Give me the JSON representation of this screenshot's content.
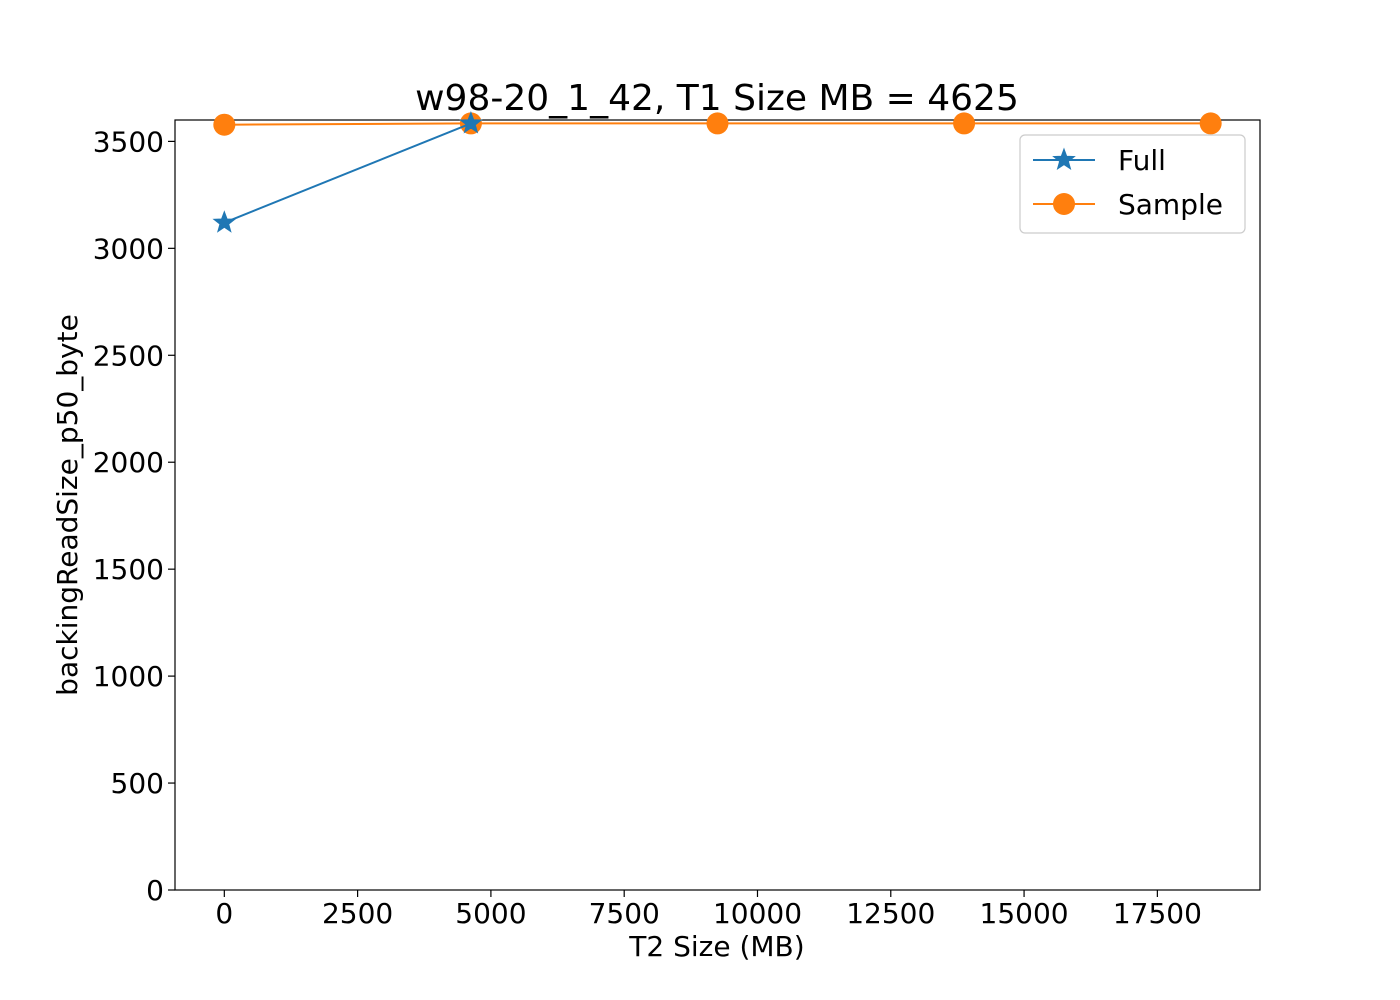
{
  "chart_data": {
    "type": "line",
    "title": "w98-20_1_42, T1 Size MB = 4625",
    "xlabel": "T2 Size (MB)",
    "ylabel": "backingReadSize_p50_byte",
    "xlim": [
      -925,
      19425
    ],
    "ylim": [
      0,
      3600
    ],
    "xticks": [
      0,
      2500,
      5000,
      7500,
      10000,
      12500,
      15000,
      17500
    ],
    "yticks": [
      0,
      500,
      1000,
      1500,
      2000,
      2500,
      3000,
      3500
    ],
    "legend_position": "top-right",
    "grid": false,
    "series": [
      {
        "name": "Full",
        "color": "#1f77b4",
        "marker": "star",
        "x": [
          0,
          4625
        ],
        "y": [
          3120,
          3584
        ]
      },
      {
        "name": "Sample",
        "color": "#ff7f0e",
        "marker": "circle",
        "x": [
          0,
          4625,
          9250,
          13875,
          18500
        ],
        "y": [
          3578,
          3584,
          3584,
          3584,
          3584
        ]
      }
    ]
  }
}
